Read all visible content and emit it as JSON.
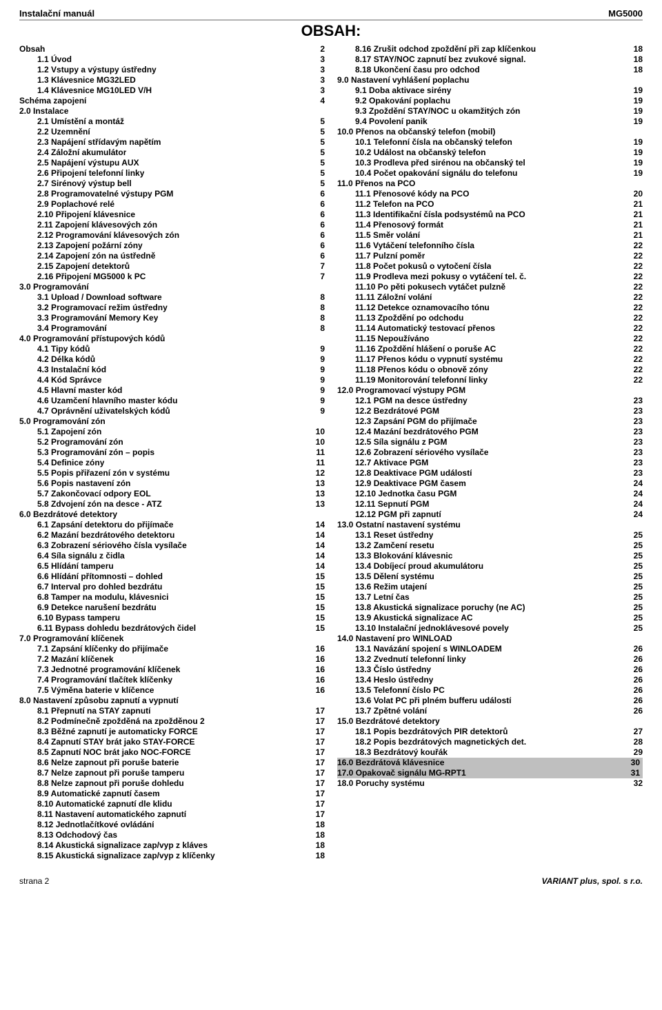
{
  "header": {
    "left": "Instalační manuál",
    "right": "MG5000"
  },
  "title": "OBSAH:",
  "footer": {
    "left": "strana 2",
    "right": "VARIANT plus, spol. s r.o."
  },
  "columns": {
    "left": [
      {
        "text": "Obsah",
        "page": "2",
        "indent": 0
      },
      {
        "text": "1.1 Úvod",
        "page": "3",
        "indent": 1
      },
      {
        "text": "1.2 Vstupy a výstupy ústředny",
        "page": "3",
        "indent": 1
      },
      {
        "text": "1.3 Klávesnice MG32LED",
        "page": "3",
        "indent": 1
      },
      {
        "text": "1.4 Klávesnice MG10LED V/H",
        "page": "3",
        "indent": 1
      },
      {
        "text": "Schéma zapojení",
        "page": "4",
        "indent": 0
      },
      {
        "text": "2.0 Instalace",
        "page": "",
        "indent": 0
      },
      {
        "text": "2.1 Umístění a montáž",
        "page": "5",
        "indent": 1
      },
      {
        "text": "2.2 Uzemnění",
        "page": "5",
        "indent": 1
      },
      {
        "text": "2.3 Napájení střídavým napětím",
        "page": "5",
        "indent": 1
      },
      {
        "text": "2.4 Záložní akumulátor",
        "page": "5",
        "indent": 1
      },
      {
        "text": "2.5 Napájení výstupu AUX",
        "page": "5",
        "indent": 1
      },
      {
        "text": "2.6 Připojení telefonní linky",
        "page": "5",
        "indent": 1
      },
      {
        "text": "2.7 Sirénový výstup bell",
        "page": "5",
        "indent": 1
      },
      {
        "text": "2.8 Programovatelné výstupy PGM",
        "page": "6",
        "indent": 1
      },
      {
        "text": "2.9 Poplachové relé",
        "page": "6",
        "indent": 1
      },
      {
        "text": "2.10 Připojení klávesnice",
        "page": "6",
        "indent": 1
      },
      {
        "text": "2.11 Zapojení klávesových zón",
        "page": "6",
        "indent": 1
      },
      {
        "text": "2.12 Programování klávesových zón",
        "page": "6",
        "indent": 1
      },
      {
        "text": "2.13 Zapojení požární zóny",
        "page": "6",
        "indent": 1
      },
      {
        "text": "2.14 Zapojení zón na ústředně",
        "page": "6",
        "indent": 1
      },
      {
        "text": "2.15 Zapojení detektorů",
        "page": "7",
        "indent": 1
      },
      {
        "text": "2.16 Připojení MG5000 k PC",
        "page": "7",
        "indent": 1
      },
      {
        "text": "3.0 Programování",
        "page": "",
        "indent": 0
      },
      {
        "text": "3.1 Upload / Download software",
        "page": "8",
        "indent": 1
      },
      {
        "text": "3.2 Programovací režim ústředny",
        "page": "8",
        "indent": 1
      },
      {
        "text": "3.3 Programování Memory Key",
        "page": "8",
        "indent": 1
      },
      {
        "text": "3.4 Programování",
        "page": "8",
        "indent": 1
      },
      {
        "text": "4.0 Programování přístupových kódů",
        "page": "",
        "indent": 0
      },
      {
        "text": "4.1 Tipy kódů",
        "page": "9",
        "indent": 1
      },
      {
        "text": "4.2 Délka kódů",
        "page": "9",
        "indent": 1
      },
      {
        "text": "4.3 Instalační kód",
        "page": "9",
        "indent": 1
      },
      {
        "text": "4.4 Kód Správce",
        "page": "9",
        "indent": 1
      },
      {
        "text": "4.5 Hlavní master kód",
        "page": "9",
        "indent": 1
      },
      {
        "text": "4.6 Uzamčení hlavního master kódu",
        "page": "9",
        "indent": 1
      },
      {
        "text": "4.7 Oprávnění uživatelských kódů",
        "page": "9",
        "indent": 1
      },
      {
        "text": "5.0 Programování zón",
        "page": "",
        "indent": 0
      },
      {
        "text": "5.1 Zapojení zón",
        "page": "10",
        "indent": 1
      },
      {
        "text": "5.2 Programování zón",
        "page": "10",
        "indent": 1
      },
      {
        "text": "5.3 Programování zón – popis",
        "page": "11",
        "indent": 1
      },
      {
        "text": "5.4 Definice zóny",
        "page": "11",
        "indent": 1
      },
      {
        "text": "5.5 Popis přiřazení zón v systému",
        "page": "12",
        "indent": 1
      },
      {
        "text": "5.6 Popis nastavení zón",
        "page": "13",
        "indent": 1
      },
      {
        "text": "5.7 Zakončovací odpory EOL",
        "page": "13",
        "indent": 1
      },
      {
        "text": "5.8 Zdvojení zón na desce - ATZ",
        "page": "13",
        "indent": 1
      },
      {
        "text": "6.0 Bezdrátové detektory",
        "page": "",
        "indent": 0
      },
      {
        "text": "6.1 Zapsání detektoru do přijímače",
        "page": "14",
        "indent": 1
      },
      {
        "text": "6.2 Mazání bezdrátového detektoru",
        "page": "14",
        "indent": 1
      },
      {
        "text": "6.3 Zobrazení sériového čísla vysílače",
        "page": "14",
        "indent": 1
      },
      {
        "text": "6.4 Síla signálu z čidla",
        "page": "14",
        "indent": 1
      },
      {
        "text": "6.5 Hlídání tamperu",
        "page": "14",
        "indent": 1
      },
      {
        "text": "6.6 Hlídání přítomnosti – dohled",
        "page": "15",
        "indent": 1
      },
      {
        "text": "6.7 Interval pro dohled bezdrátu",
        "page": "15",
        "indent": 1
      },
      {
        "text": "6.8 Tamper na modulu, klávesnici",
        "page": "15",
        "indent": 1
      },
      {
        "text": "6.9 Detekce narušení bezdrátu",
        "page": "15",
        "indent": 1
      },
      {
        "text": "6.10 Bypass tamperu",
        "page": "15",
        "indent": 1
      },
      {
        "text": "6.11 Bypass dohledu bezdrátových čidel",
        "page": "15",
        "indent": 1
      },
      {
        "text": "7.0 Programování klíčenek",
        "page": "",
        "indent": 0
      },
      {
        "text": "7.1 Zapsání klíčenky do přijímače",
        "page": "16",
        "indent": 1
      },
      {
        "text": "7.2 Mazání klíčenek",
        "page": "16",
        "indent": 1
      },
      {
        "text": "7.3 Jednotné programování klíčenek",
        "page": "16",
        "indent": 1
      },
      {
        "text": "7.4 Programování tlačítek klíčenky",
        "page": "16",
        "indent": 1
      },
      {
        "text": "7.5 Výměna baterie v klíčence",
        "page": "16",
        "indent": 1
      },
      {
        "text": "8.0 Nastavení způsobu zapnutí a vypnutí",
        "page": "",
        "indent": 0
      },
      {
        "text": "8.1 Přepnutí na STAY zapnutí",
        "page": "17",
        "indent": 1
      },
      {
        "text": "8.2 Podmínečně zpožděná na zpožděnou 2",
        "page": "17",
        "indent": 1
      },
      {
        "text": "8.3 Běžné zapnutí je automaticky FORCE",
        "page": "17",
        "indent": 1
      },
      {
        "text": "8.4 Zapnutí STAY brát jako STAY-FORCE",
        "page": "17",
        "indent": 1
      },
      {
        "text": "8.5 Zapnutí NOC brát jako NOC-FORCE",
        "page": "17",
        "indent": 1
      },
      {
        "text": "8.6 Nelze zapnout při poruše baterie",
        "page": "17",
        "indent": 1
      },
      {
        "text": "8.7 Nelze zapnout při poruše tamperu",
        "page": "17",
        "indent": 1
      },
      {
        "text": "8.8 Nelze zapnout při poruše dohledu",
        "page": "17",
        "indent": 1
      },
      {
        "text": "8.9 Automatické zapnutí časem",
        "page": "17",
        "indent": 1
      },
      {
        "text": "8.10 Automatické zapnutí dle klidu",
        "page": "17",
        "indent": 1
      },
      {
        "text": "8.11 Nastavení automatického zapnutí",
        "page": "17",
        "indent": 1
      },
      {
        "text": "8.12 Jednotlačítkové ovládání",
        "page": "18",
        "indent": 1
      },
      {
        "text": "8.13 Odchodový čas",
        "page": "18",
        "indent": 1
      },
      {
        "text": "8.14 Akustická signalizace zap/vyp z kláves",
        "page": "18",
        "indent": 1
      },
      {
        "text": "8.15 Akustická signalizace zap/vyp z klíčenky",
        "page": "18",
        "indent": 1
      }
    ],
    "right": [
      {
        "text": "8.16 Zrušit odchod zpoždění při zap klíčenkou",
        "page": "18",
        "indent": 1
      },
      {
        "text": "8.17 STAY/NOC zapnutí bez zvukové signal.",
        "page": "18",
        "indent": 1
      },
      {
        "text": "8.18 Ukončení času pro odchod",
        "page": "18",
        "indent": 1
      },
      {
        "text": "9.0 Nastavení vyhlášení poplachu",
        "page": "",
        "indent": 0
      },
      {
        "text": "9.1 Doba aktivace sirény",
        "page": "19",
        "indent": 1
      },
      {
        "text": "9.2 Opakování poplachu",
        "page": "19",
        "indent": 1
      },
      {
        "text": "9.3 Zpoždění STAY/NOC u okamžitých zón",
        "page": "19",
        "indent": 1
      },
      {
        "text": "9.4 Povolení panik",
        "page": "19",
        "indent": 1
      },
      {
        "text": "10.0 Přenos na občanský telefon (mobil)",
        "page": "",
        "indent": 0
      },
      {
        "text": "10.1 Telefonní čísla na občanský telefon",
        "page": "19",
        "indent": 1
      },
      {
        "text": "10.2 Událost na občanský telefon",
        "page": "19",
        "indent": 1
      },
      {
        "text": "10.3 Prodleva před sirénou na občanský tel",
        "page": "19",
        "indent": 1
      },
      {
        "text": "10.4 Počet opakování signálu do telefonu",
        "page": "19",
        "indent": 1
      },
      {
        "text": "11.0 Přenos na PCO",
        "page": "",
        "indent": 0
      },
      {
        "text": "11.1 Přenosové kódy na PCO",
        "page": "20",
        "indent": 1
      },
      {
        "text": "11.2 Telefon na PCO",
        "page": "21",
        "indent": 1
      },
      {
        "text": "11.3 Identifikační čísla podsystémů na PCO",
        "page": "21",
        "indent": 1
      },
      {
        "text": "11.4 Přenosový formát",
        "page": "21",
        "indent": 1
      },
      {
        "text": "11.5 Směr volání",
        "page": "21",
        "indent": 1
      },
      {
        "text": "11.6 Vytáčení telefonního čísla",
        "page": "22",
        "indent": 1
      },
      {
        "text": "11.7 Pulzní poměr",
        "page": "22",
        "indent": 1
      },
      {
        "text": "11.8 Počet pokusů o vytočení čísla",
        "page": "22",
        "indent": 1
      },
      {
        "text": "11.9 Prodleva mezi pokusy o vytáčení tel. č.",
        "page": "22",
        "indent": 1
      },
      {
        "text": "11.10 Po pěti pokusech vytáčet pulzně",
        "page": "22",
        "indent": 1
      },
      {
        "text": "11.11 Záložní volání",
        "page": "22",
        "indent": 1
      },
      {
        "text": "11.12 Detekce oznamovacího tónu",
        "page": "22",
        "indent": 1
      },
      {
        "text": "11.13 Zpoždění po odchodu",
        "page": "22",
        "indent": 1
      },
      {
        "text": "11.14 Automatický testovací přenos",
        "page": "22",
        "indent": 1
      },
      {
        "text": "11.15 Nepoužíváno",
        "page": "22",
        "indent": 1
      },
      {
        "text": "11.16 Zpoždění hlášení o poruše AC",
        "page": "22",
        "indent": 1
      },
      {
        "text": "11.17 Přenos kódu o vypnutí systému",
        "page": "22",
        "indent": 1
      },
      {
        "text": "11.18 Přenos kódu o obnově zóny",
        "page": "22",
        "indent": 1
      },
      {
        "text": "11.19 Monitorování telefonní linky",
        "page": "22",
        "indent": 1
      },
      {
        "text": "12.0 Programovací výstupy PGM",
        "page": "",
        "indent": 0
      },
      {
        "text": "12.1 PGM na desce ústředny",
        "page": "23",
        "indent": 1
      },
      {
        "text": "12.2 Bezdrátové PGM",
        "page": "23",
        "indent": 1
      },
      {
        "text": "12.3 Zapsání PGM do přijímače",
        "page": "23",
        "indent": 1
      },
      {
        "text": "12.4 Mazání bezdrátového PGM",
        "page": "23",
        "indent": 1
      },
      {
        "text": "12.5 Síla signálu z PGM",
        "page": "23",
        "indent": 1
      },
      {
        "text": "12.6 Zobrazení sériového vysílače",
        "page": "23",
        "indent": 1
      },
      {
        "text": "12.7 Aktivace PGM",
        "page": "23",
        "indent": 1
      },
      {
        "text": "12.8 Deaktivace PGM událostí",
        "page": "23",
        "indent": 1
      },
      {
        "text": "12.9 Deaktivace PGM časem",
        "page": "24",
        "indent": 1
      },
      {
        "text": "12.10 Jednotka času PGM",
        "page": "24",
        "indent": 1
      },
      {
        "text": "12.11 Sepnutí PGM",
        "page": "24",
        "indent": 1
      },
      {
        "text": "12.12 PGM při zapnutí",
        "page": "24",
        "indent": 1
      },
      {
        "text": "13.0 Ostatní nastavení systému",
        "page": "",
        "indent": 0
      },
      {
        "text": "13.1 Reset ústředny",
        "page": "25",
        "indent": 1
      },
      {
        "text": "13.2 Zamčení resetu",
        "page": "25",
        "indent": 1
      },
      {
        "text": "13.3 Blokování klávesnic",
        "page": "25",
        "indent": 1
      },
      {
        "text": "13.4 Dobíjecí proud akumulátoru",
        "page": "25",
        "indent": 1
      },
      {
        "text": "13.5 Dělení systému",
        "page": "25",
        "indent": 1
      },
      {
        "text": "13.6 Režim utajení",
        "page": "25",
        "indent": 1
      },
      {
        "text": "13.7 Letní čas",
        "page": "25",
        "indent": 1
      },
      {
        "text": "13.8 Akustická signalizace poruchy (ne AC)",
        "page": "25",
        "indent": 1
      },
      {
        "text": "13.9 Akustická signalizace AC",
        "page": "25",
        "indent": 1
      },
      {
        "text": "13.10 Instalační jednoklávesové povely",
        "page": "25",
        "indent": 1
      },
      {
        "text": "14.0 Nastavení pro WINLOAD",
        "page": "",
        "indent": 0
      },
      {
        "text": "13.1 Navázání spojení s WINLOADEM",
        "page": "26",
        "indent": 1
      },
      {
        "text": "13.2 Zvednutí telefonní linky",
        "page": "26",
        "indent": 1
      },
      {
        "text": "13.3 Číslo ústředny",
        "page": "26",
        "indent": 1
      },
      {
        "text": "13.4 Heslo ústředny",
        "page": "26",
        "indent": 1
      },
      {
        "text": "13.5 Telefonní číslo PC",
        "page": "26",
        "indent": 1
      },
      {
        "text": "13.6 Volat PC při plném bufferu událostí",
        "page": "26",
        "indent": 1
      },
      {
        "text": "13.7 Zpětné volání",
        "page": "26",
        "indent": 1
      },
      {
        "text": "15.0 Bezdrátové detektory",
        "page": "",
        "indent": 0
      },
      {
        "text": "18.1 Popis bezdrátových PIR detektorů",
        "page": "27",
        "indent": 1
      },
      {
        "text": "18.2 Popis bezdrátových magnetických det.",
        "page": "28",
        "indent": 1
      },
      {
        "text": "18.3 Bezdrátový kouřák",
        "page": "29",
        "indent": 1
      },
      {
        "text": "16.0 Bezdrátová klávesnice",
        "page": "30",
        "indent": 0,
        "highlight": true
      },
      {
        "text": "17.0 Opakovač signálu MG-RPT1",
        "page": "31",
        "indent": 0,
        "highlight": true
      },
      {
        "text": "18.0 Poruchy systému",
        "page": "32",
        "indent": 0
      }
    ]
  }
}
